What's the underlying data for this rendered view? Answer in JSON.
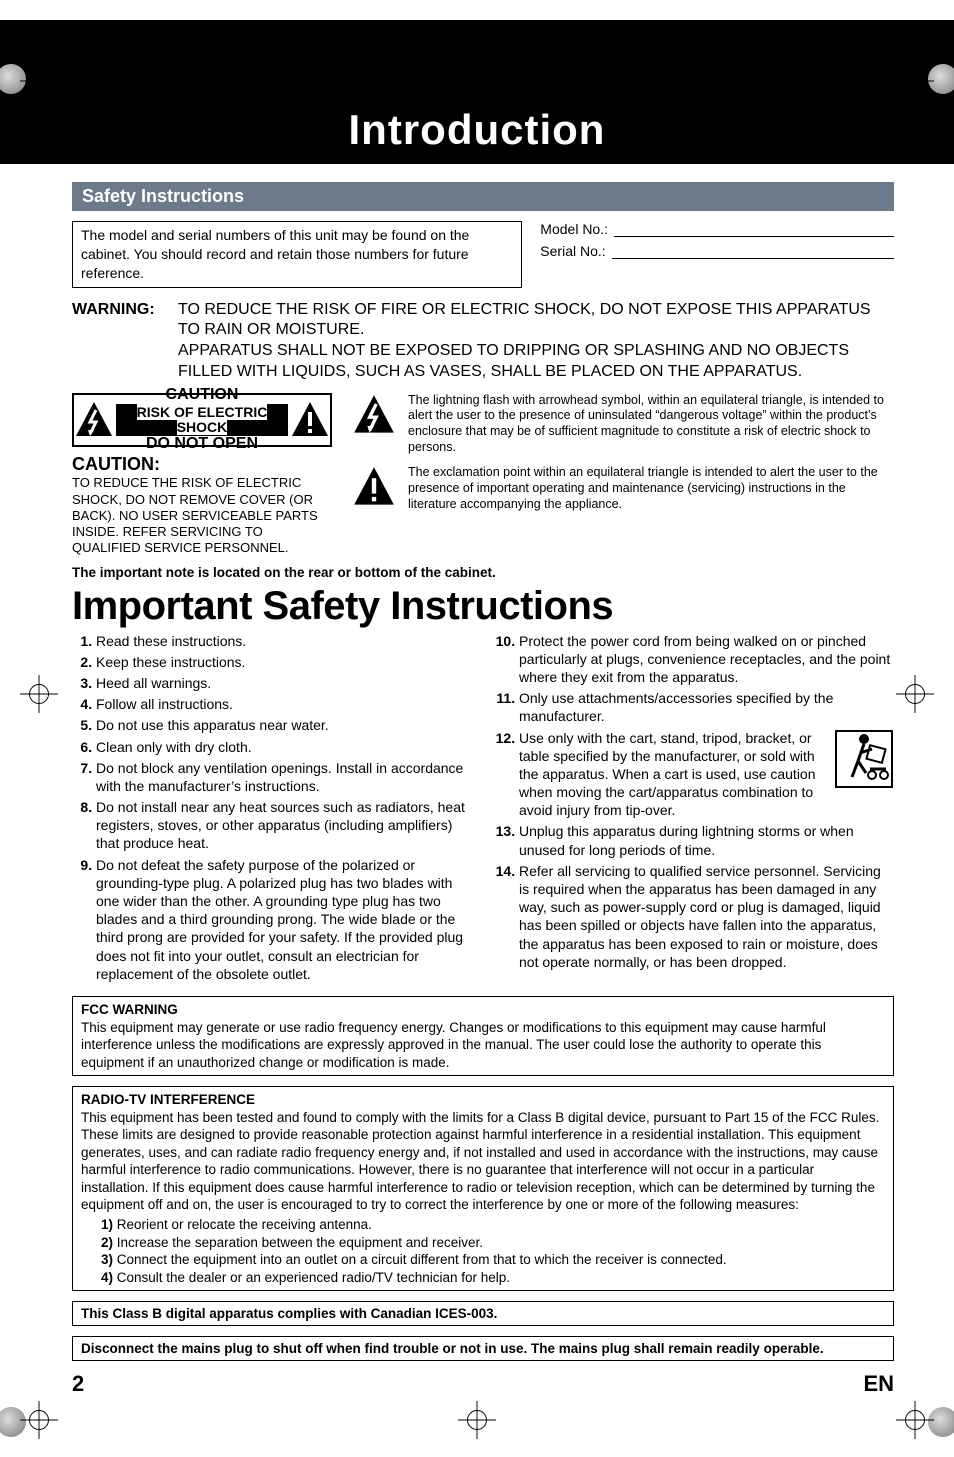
{
  "doctag": "E5",
  "chapter": "Introduction",
  "subhead": "Safety Instructions",
  "modelbox": "The model and serial numbers of this unit may be found on the cabinet. You should record and retain those numbers for future reference.",
  "model_label": "Model No.:",
  "serial_label": "Serial No.:",
  "warning_label": "WARNING:",
  "warning_body": "TO REDUCE THE RISK OF FIRE OR ELECTRIC SHOCK, DO NOT EXPOSE THIS APPARATUS TO RAIN OR MOISTURE.\nAPPARATUS SHALL NOT BE EXPOSED TO DRIPPING OR SPLASHING AND NO OBJECTS FILLED WITH LIQUIDS, SUCH AS VASES, SHALL BE PLACED ON THE APPARATUS.",
  "plate_l1": "CAUTION",
  "plate_l2": "RISK OF ELECTRIC SHOCK",
  "plate_l3": "DO NOT OPEN",
  "caution2_h": "CAUTION:",
  "caution2_b": "TO REDUCE THE RISK OF ELECTRIC SHOCK, DO NOT REMOVE COVER (OR BACK). NO USER SERVICEABLE PARTS INSIDE. REFER SERVICING TO QUALIFIED SERVICE PERSONNEL.",
  "sym_bolt": "The lightning flash with arrowhead symbol, within an equilateral triangle, is intended to alert the user to the presence of uninsulated “dangerous voltage” within the product’s enclosure that may be of sufficient magnitude to constitute a risk of electric shock to persons.",
  "sym_excl": "The exclamation point within an equilateral triangle is intended to alert the user to the presence of important operating and maintenance (servicing) instructions in the literature accompanying the appliance.",
  "note_loc": "The important note is located on the rear or bottom of the cabinet.",
  "isi_title": "Important Safety Instructions",
  "isi_left": [
    "Read these instructions.",
    "Keep these instructions.",
    "Heed all warnings.",
    "Follow all instructions.",
    "Do not use this apparatus near water.",
    "Clean only with dry cloth.",
    "Do not block any ventilation openings. Install in accordance with the manufacturer’s instructions.",
    "Do not install near any heat sources such as radiators, heat registers, stoves, or other apparatus (including amplifiers) that produce heat.",
    "Do not defeat the safety purpose of the polarized or grounding-type plug. A polarized plug has two blades with one wider than the other. A grounding type plug has two blades and a third grounding prong. The wide blade or the third prong are provided for your safety. If the provided plug does not fit into your outlet, consult an electrician for replacement of the obsolete outlet."
  ],
  "isi_right": [
    "Protect the power cord from being walked on or pinched particularly at plugs, convenience receptacles, and the point where they exit from the apparatus.",
    "Only use attachments/accessories specified by the manufacturer.",
    "Use only with the cart, stand, tripod, bracket, or table specified by the manufacturer, or sold with the apparatus. When a cart is used, use caution when moving the cart/apparatus combination to avoid injury from tip-over.",
    "Unplug this apparatus during lightning storms or when unused for long periods of time.",
    "Refer all servicing to qualified service personnel. Servicing is required when the apparatus has been damaged in any way, such as power-supply cord or plug is damaged, liquid has been spilled or objects have fallen into the apparatus, the apparatus has been exposed to rain or moisture, does not operate normally, or has been dropped."
  ],
  "fcc_h": "FCC WARNING",
  "fcc_b": "This equipment may generate or use radio frequency energy. Changes or modifications to this equipment may cause harmful interference unless the modifications are expressly approved in the manual. The user could lose the authority to operate this equipment if an unauthorized change or modification is made.",
  "rtv_h": "RADIO-TV INTERFERENCE",
  "rtv_b": "This equipment has been tested and found to comply with the limits for a Class B digital device, pursuant to Part 15 of the FCC Rules. These limits are designed to provide reasonable protection against harmful interference in a residential installation. This equipment generates, uses, and can radiate radio frequency energy and, if not installed and used in accordance with the instructions, may cause harmful interference to radio communications. However, there is no guarantee that interference will not occur in a particular installation. If this equipment does cause harmful interference to radio or television reception, which can be determined by turning the equipment off and on, the user is encouraged to try to correct the interference by one or more of the following measures:",
  "rtv_list": [
    "Reorient or relocate the receiving antenna.",
    "Increase the separation between the equipment and receiver.",
    "Connect the equipment into an outlet on a circuit different from that to which the receiver is connected.",
    "Consult the dealer or an experienced radio/TV technician for help."
  ],
  "ices": "This Class B digital apparatus complies with Canadian ICES-003.",
  "mains": "Disconnect the mains plug to shut off when find trouble or not in use. The mains plug shall remain readily operable.",
  "page_no": "2",
  "lang": "EN",
  "colors": {
    "header_bg": "#000000",
    "subhead_bg": "#6c7a8a",
    "text": "#000000"
  }
}
